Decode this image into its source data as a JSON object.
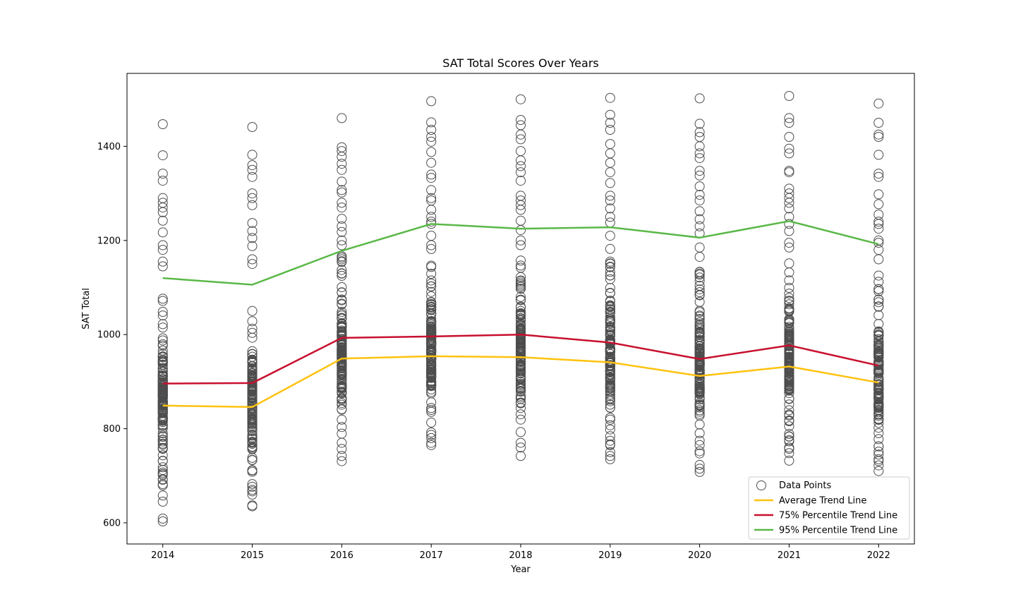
{
  "chart_data": {
    "type": "scatter",
    "title": "SAT Total Scores Over Years",
    "xlabel": "Year",
    "ylabel": "SAT Total",
    "x": [
      2014,
      2015,
      2016,
      2017,
      2018,
      2019,
      2020,
      2021,
      2022
    ],
    "xticks": [
      "2014",
      "2015",
      "2016",
      "2017",
      "2018",
      "2019",
      "2020",
      "2021",
      "2022"
    ],
    "yticks": [
      600,
      800,
      1000,
      1200,
      1400
    ],
    "xlim": [
      2013.6,
      2022.4
    ],
    "ylim": [
      555,
      1555
    ],
    "grid": false,
    "legend_position": "lower-right",
    "colors": {
      "points": "#4d4d4d",
      "average": "#ffc20e",
      "p75": "#c8102e",
      "p95": "#5ab848"
    },
    "scatter": {
      "name": "Data Points",
      "ranges": [
        {
          "year": 2014,
          "min": 603,
          "max": 1447,
          "outliers": [
            603,
            609,
            645,
            658,
            1447,
            1381,
            1342,
            1327,
            1290,
            1280,
            1270,
            1260,
            1242,
            1217,
            1190,
            1180,
            1155,
            1145
          ]
        },
        {
          "year": 2015,
          "min": 635,
          "max": 1441,
          "outliers": [
            635,
            637,
            660,
            670,
            1441,
            1382,
            1360,
            1350,
            1335,
            1300,
            1290,
            1275,
            1237,
            1220,
            1205,
            1188,
            1160,
            1150
          ]
        },
        {
          "year": 2016,
          "min": 731,
          "max": 1460,
          "outliers": [
            731,
            742,
            757,
            770,
            1460,
            1398,
            1390,
            1378,
            1363,
            1350,
            1325,
            1307,
            1302,
            1280,
            1270,
            1246,
            1230,
            1218,
            1200,
            1190,
            1160
          ]
        },
        {
          "year": 2017,
          "min": 765,
          "max": 1496,
          "outliers": [
            765,
            770,
            780,
            1496,
            1451,
            1435,
            1420,
            1410,
            1388,
            1365,
            1340,
            1333,
            1307,
            1290,
            1285,
            1265,
            1250,
            1240,
            1235,
            1210,
            1190
          ]
        },
        {
          "year": 2018,
          "min": 742,
          "max": 1500,
          "outliers": [
            742,
            760,
            770,
            1500,
            1456,
            1445,
            1425,
            1415,
            1390,
            1370,
            1358,
            1345,
            1327,
            1295,
            1285,
            1275,
            1265,
            1242,
            1222,
            1200,
            1190
          ]
        },
        {
          "year": 2019,
          "min": 735,
          "max": 1503,
          "outliers": [
            735,
            742,
            750,
            765,
            1503,
            1467,
            1450,
            1435,
            1405,
            1385,
            1365,
            1345,
            1322,
            1295,
            1285,
            1268,
            1250,
            1238,
            1210,
            1182
          ]
        },
        {
          "year": 2020,
          "min": 708,
          "max": 1502,
          "outliers": [
            708,
            715,
            723,
            752,
            1502,
            1448,
            1430,
            1420,
            1400,
            1385,
            1375,
            1348,
            1338,
            1315,
            1297,
            1285,
            1262,
            1245,
            1230,
            1215,
            1185,
            1165
          ]
        },
        {
          "year": 2021,
          "min": 732,
          "max": 1507,
          "outliers": [
            732,
            748,
            760,
            1507,
            1460,
            1450,
            1420,
            1395,
            1385,
            1348,
            1345,
            1310,
            1300,
            1290,
            1280,
            1268,
            1250,
            1235,
            1220,
            1195,
            1185
          ]
        },
        {
          "year": 2022,
          "min": 710,
          "max": 1491,
          "outliers": [
            710,
            722,
            735,
            745,
            1491,
            1450,
            1425,
            1420,
            1382,
            1342,
            1335,
            1298,
            1277,
            1255,
            1240,
            1235,
            1225,
            1200,
            1195,
            1180,
            1160
          ]
        }
      ]
    },
    "series": [
      {
        "name": "Average Trend Line",
        "values": [
          849,
          846,
          949,
          954,
          952,
          941,
          912,
          932,
          898
        ]
      },
      {
        "name": "75% Percentile Trend Line",
        "values": [
          896,
          897,
          993,
          996,
          1000,
          983,
          948,
          977,
          934
        ]
      },
      {
        "name": "95% Percentile Trend Line",
        "values": [
          1120,
          1106,
          1178,
          1235,
          1225,
          1228,
          1206,
          1241,
          1192
        ]
      }
    ]
  }
}
